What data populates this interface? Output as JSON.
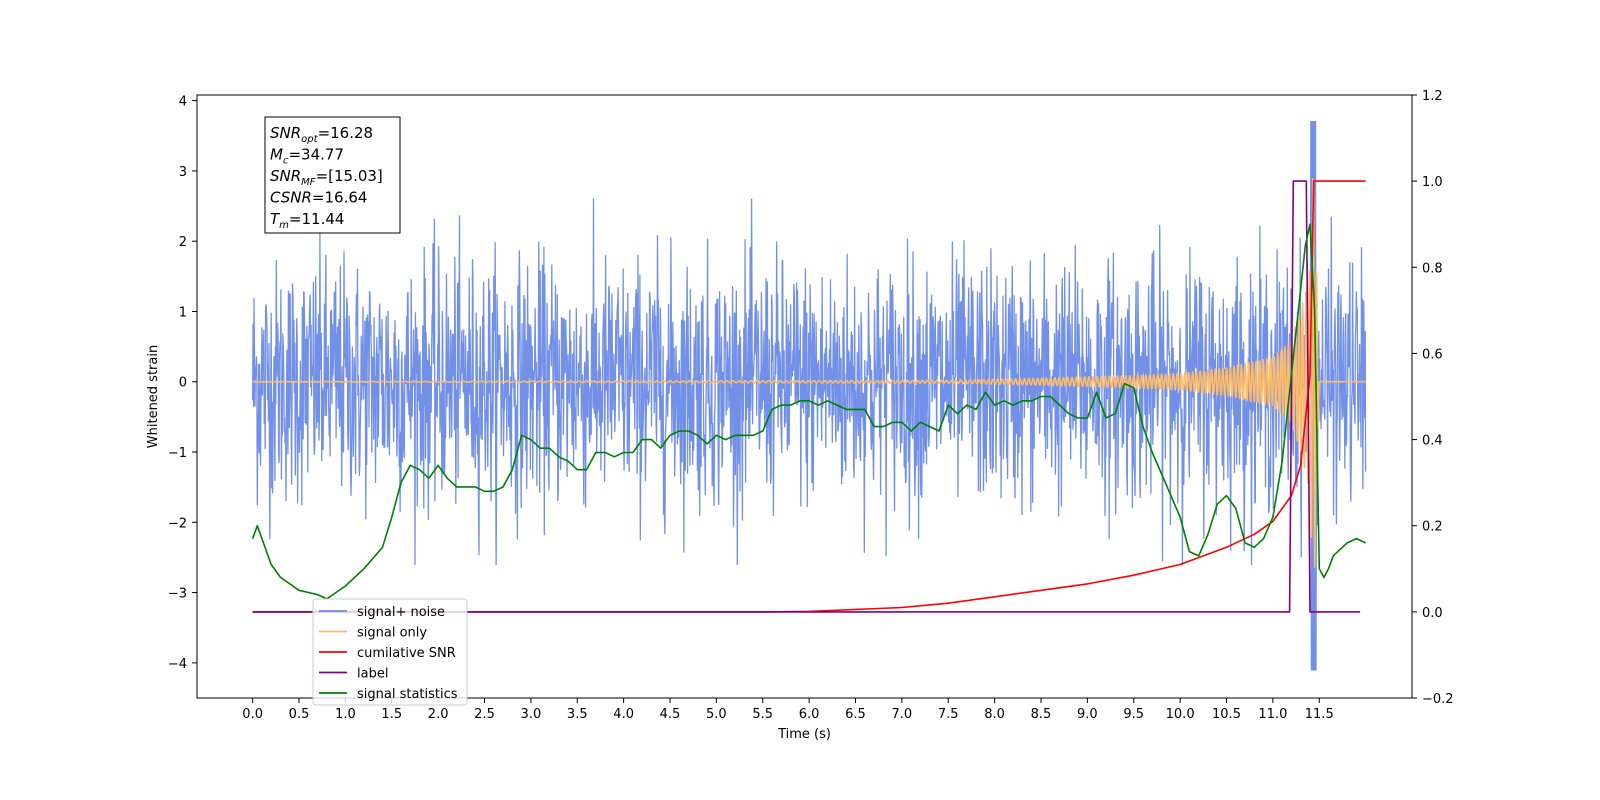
{
  "chart_data": {
    "type": "line",
    "xlabel": "Time (s)",
    "ylabel": "Whitened strain",
    "xlim": [
      -0.6,
      12.5
    ],
    "ylim_left": [
      -4.5,
      4.08
    ],
    "ylim_right": [
      -0.2,
      1.2
    ],
    "x_ticks": [
      0.0,
      0.5,
      1.0,
      1.5,
      2.0,
      2.5,
      3.0,
      3.5,
      4.0,
      4.5,
      5.0,
      5.5,
      6.0,
      6.5,
      7.0,
      7.5,
      8.0,
      8.5,
      9.0,
      9.5,
      10.0,
      10.5,
      11.0,
      11.5
    ],
    "x_tick_labels": [
      "0.0",
      "0.5",
      "1.0",
      "1.5",
      "2.0",
      "2.5",
      "3.0",
      "3.5",
      "4.0",
      "4.5",
      "5.0",
      "5.5",
      "6.0",
      "6.5",
      "7.0",
      "7.5",
      "8.0",
      "8.5",
      "9.0",
      "9.5",
      "10.0",
      "10.5",
      "11.0",
      "11.5"
    ],
    "y_left_ticks": [
      4,
      3,
      2,
      1,
      0,
      -1,
      -2,
      -3,
      -4
    ],
    "y_left_tick_labels": [
      "4",
      "3",
      "2",
      "1",
      "0",
      "−1",
      "−2",
      "−3",
      "−4"
    ],
    "y_right_ticks": [
      1.2,
      1.0,
      0.8,
      0.6,
      0.4,
      0.2,
      0.0,
      -0.2
    ],
    "y_right_tick_labels": [
      "1.2",
      "1.0",
      "0.8",
      "0.6",
      "0.4",
      "0.2",
      "0.0",
      "−0.2"
    ],
    "legend_position": "lower-left",
    "legend": [
      {
        "label": "signal+ noise",
        "color": "#6a8ae6"
      },
      {
        "label": "signal only",
        "color": "#ffbb66"
      },
      {
        "label": "cumilative SNR",
        "color": "#ff0000"
      },
      {
        "label": "label",
        "color": "#800080"
      },
      {
        "label": "signal statistics",
        "color": "#008000"
      }
    ],
    "annotation": [
      {
        "main": "SNR",
        "sub": "opt",
        "rest": "=16.28"
      },
      {
        "main": "M",
        "sub": "c",
        "rest": "=34.77"
      },
      {
        "main": "SNR",
        "sub": "MF",
        "rest": "=[15.03]"
      },
      {
        "main": "CSNR",
        "sub": "",
        "rest": "=16.64"
      },
      {
        "main": "T",
        "sub": "m",
        "rest": "=11.44"
      }
    ],
    "series": [
      {
        "name": "signal+ noise",
        "axis": "left",
        "color": "#6a8ae6",
        "x_start": 0.0,
        "x_end": 12.0,
        "envelope_max": 2.6,
        "peak_x": 11.44,
        "peak_max": 3.7,
        "peak_min": -4.1
      },
      {
        "name": "signal only",
        "axis": "left",
        "color": "#ffbb66",
        "x": [
          0.0,
          7.5,
          8.5,
          9.5,
          10.0,
          10.5,
          11.0,
          11.2,
          11.3,
          11.4,
          11.44,
          11.5,
          12.0
        ],
        "amplitude": [
          0.0,
          0.02,
          0.05,
          0.09,
          0.12,
          0.2,
          0.35,
          0.6,
          1.0,
          1.6,
          3.3,
          0.0,
          0.0
        ]
      },
      {
        "name": "cumilative SNR",
        "axis": "right",
        "color": "#ff0000",
        "x": [
          0.0,
          5.5,
          6.0,
          7.0,
          7.5,
          8.0,
          8.5,
          9.0,
          9.5,
          10.0,
          10.5,
          10.8,
          11.0,
          11.2,
          11.3,
          11.4,
          11.44,
          11.5,
          12.0
        ],
        "y": [
          0.0,
          0.0,
          0.001,
          0.01,
          0.02,
          0.035,
          0.05,
          0.065,
          0.085,
          0.11,
          0.15,
          0.18,
          0.21,
          0.27,
          0.34,
          0.55,
          1.0,
          1.0,
          1.0
        ]
      },
      {
        "name": "label",
        "axis": "right",
        "color": "#800080",
        "x": [
          0.0,
          11.18,
          11.22,
          11.36,
          11.4,
          11.94
        ],
        "y": [
          0.0,
          0.0,
          1.0,
          1.0,
          0.0,
          0.0
        ]
      },
      {
        "name": "signal statistics",
        "axis": "right",
        "color": "#008000",
        "x": [
          0.0,
          0.05,
          0.1,
          0.2,
          0.3,
          0.5,
          0.7,
          0.8,
          1.0,
          1.2,
          1.4,
          1.5,
          1.6,
          1.7,
          1.8,
          1.9,
          2.0,
          2.1,
          2.2,
          2.4,
          2.5,
          2.6,
          2.7,
          2.8,
          2.9,
          3.0,
          3.1,
          3.2,
          3.3,
          3.4,
          3.5,
          3.6,
          3.7,
          3.8,
          3.9,
          4.0,
          4.1,
          4.2,
          4.3,
          4.4,
          4.5,
          4.6,
          4.7,
          4.8,
          4.9,
          5.0,
          5.1,
          5.2,
          5.3,
          5.4,
          5.5,
          5.6,
          5.7,
          5.8,
          5.9,
          6.0,
          6.1,
          6.2,
          6.3,
          6.4,
          6.5,
          6.6,
          6.7,
          6.8,
          6.9,
          7.0,
          7.1,
          7.2,
          7.3,
          7.4,
          7.5,
          7.6,
          7.7,
          7.8,
          7.9,
          8.0,
          8.1,
          8.2,
          8.3,
          8.4,
          8.5,
          8.6,
          8.7,
          8.8,
          8.9,
          9.0,
          9.1,
          9.2,
          9.3,
          9.4,
          9.5,
          9.6,
          9.7,
          9.8,
          9.9,
          10.0,
          10.1,
          10.2,
          10.3,
          10.4,
          10.5,
          10.6,
          10.7,
          10.8,
          10.9,
          11.0,
          11.1,
          11.2,
          11.3,
          11.35,
          11.4,
          11.45,
          11.5,
          11.55,
          11.6,
          11.65,
          11.7,
          11.8,
          11.9,
          12.0
        ],
        "y": [
          0.17,
          0.2,
          0.17,
          0.11,
          0.08,
          0.05,
          0.04,
          0.03,
          0.06,
          0.1,
          0.15,
          0.22,
          0.3,
          0.34,
          0.33,
          0.31,
          0.34,
          0.31,
          0.29,
          0.29,
          0.28,
          0.28,
          0.29,
          0.33,
          0.41,
          0.4,
          0.38,
          0.38,
          0.36,
          0.35,
          0.33,
          0.33,
          0.37,
          0.37,
          0.36,
          0.37,
          0.37,
          0.4,
          0.4,
          0.38,
          0.41,
          0.42,
          0.42,
          0.41,
          0.39,
          0.41,
          0.4,
          0.41,
          0.41,
          0.41,
          0.42,
          0.47,
          0.48,
          0.48,
          0.49,
          0.49,
          0.48,
          0.49,
          0.48,
          0.47,
          0.47,
          0.47,
          0.43,
          0.43,
          0.44,
          0.44,
          0.42,
          0.44,
          0.43,
          0.42,
          0.48,
          0.46,
          0.48,
          0.47,
          0.51,
          0.48,
          0.49,
          0.48,
          0.49,
          0.49,
          0.5,
          0.5,
          0.48,
          0.46,
          0.45,
          0.45,
          0.51,
          0.45,
          0.46,
          0.53,
          0.52,
          0.43,
          0.37,
          0.32,
          0.27,
          0.22,
          0.14,
          0.13,
          0.18,
          0.25,
          0.27,
          0.24,
          0.16,
          0.15,
          0.17,
          0.22,
          0.35,
          0.55,
          0.75,
          0.85,
          0.9,
          0.7,
          0.1,
          0.08,
          0.1,
          0.13,
          0.14,
          0.16,
          0.17,
          0.16
        ]
      }
    ]
  }
}
